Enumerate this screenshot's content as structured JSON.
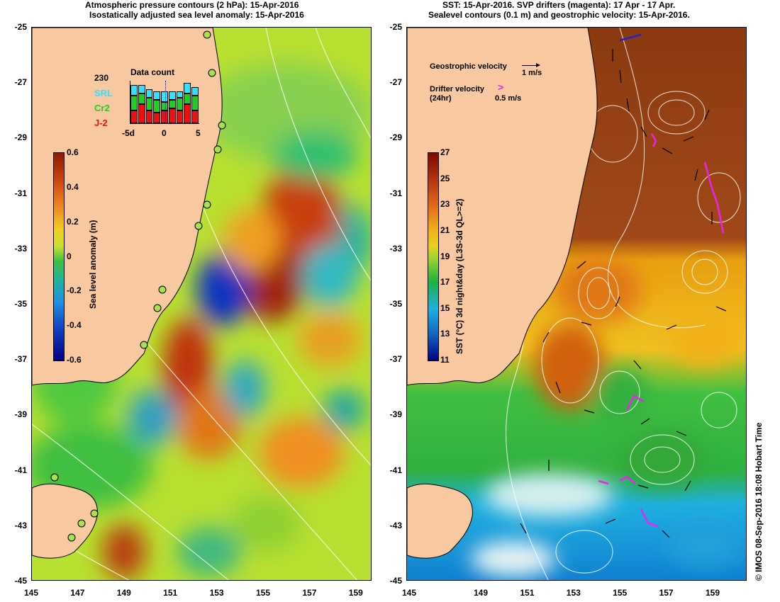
{
  "left_panel": {
    "title_line1": "Atmospheric pressure contours (2 hPa): 15-Apr-2016",
    "title_line2": "Isostatically adjusted sea level anomaly: 15-Apr-2016",
    "y_ticks": [
      "-25",
      "-27",
      "-29",
      "-31",
      "-33",
      "-35",
      "-37",
      "-39",
      "-41",
      "-43",
      "-45"
    ],
    "x_ticks": [
      "145",
      "147",
      "149",
      "151",
      "153",
      "155",
      "157",
      "159"
    ],
    "colorbar": {
      "label": "Sea level anomaly (m)",
      "ticks": [
        "0.6",
        "0.4",
        "0.2",
        "0",
        "-0.2",
        "-0.4",
        "-0.6"
      ],
      "range": [
        -0.6,
        0.6
      ]
    },
    "data_count": {
      "total": "230",
      "title": "Data count",
      "legend": [
        {
          "name": "SRL",
          "color": "#33e0ff"
        },
        {
          "name": "Cr2",
          "color": "#22cc22"
        },
        {
          "name": "J-2",
          "color": "#ee1111"
        }
      ],
      "x_ticks": [
        "-5d",
        "0",
        "5"
      ],
      "bars": [
        {
          "j2": 0.3,
          "cr2": 0.35,
          "srl": 0.25
        },
        {
          "j2": 0.45,
          "cr2": 0.25,
          "srl": 0.2
        },
        {
          "j2": 0.3,
          "cr2": 0.3,
          "srl": 0.2
        },
        {
          "j2": 0.25,
          "cr2": 0.3,
          "srl": 0.2
        },
        {
          "j2": 0.3,
          "cr2": 0.2,
          "srl": 0.25
        },
        {
          "j2": 0.35,
          "cr2": 0.2,
          "srl": 0.2
        },
        {
          "j2": 0.3,
          "cr2": 0.3,
          "srl": 0.15
        },
        {
          "j2": 0.45,
          "cr2": 0.25,
          "srl": 0.25
        },
        {
          "j2": 0.3,
          "cr2": 0.35,
          "srl": 0.2
        }
      ]
    }
  },
  "right_panel": {
    "title_line1": "SST: 15-Apr-2016. SVP drifters (magenta): 17 Apr - 17 Apr.",
    "title_line2": "Sealevel contours (0.1 m) and geostrophic velocity: 15-Apr-2016.",
    "y_ticks": [
      "-25",
      "-27",
      "-29",
      "-31",
      "-33",
      "-35",
      "-37",
      "-39",
      "-41",
      "-43",
      "-45"
    ],
    "x_ticks": [
      "149",
      "151",
      "153",
      "155",
      "157",
      "159"
    ],
    "x_tick_partial": "145",
    "colorbar": {
      "label": "SST (°C) 3d night&day (L3S-3d QL>=2)",
      "ticks": [
        "27",
        "25",
        "23",
        "21",
        "19",
        "17",
        "15",
        "13",
        "11"
      ],
      "range": [
        11,
        27
      ]
    },
    "legend": {
      "geostrophic_label": "Geostrophic velocity",
      "geostrophic_scale": "1 m/s",
      "drifter_label": "Drifter velocity",
      "drifter_sub": "(24hr)",
      "drifter_scale": "0.5 m/s"
    }
  },
  "credit": "© IMOS 08-Sep-2016 18:08 Hobart Time",
  "colors": {
    "land": "#f8c8a0",
    "drifter": "#ee22ee"
  }
}
